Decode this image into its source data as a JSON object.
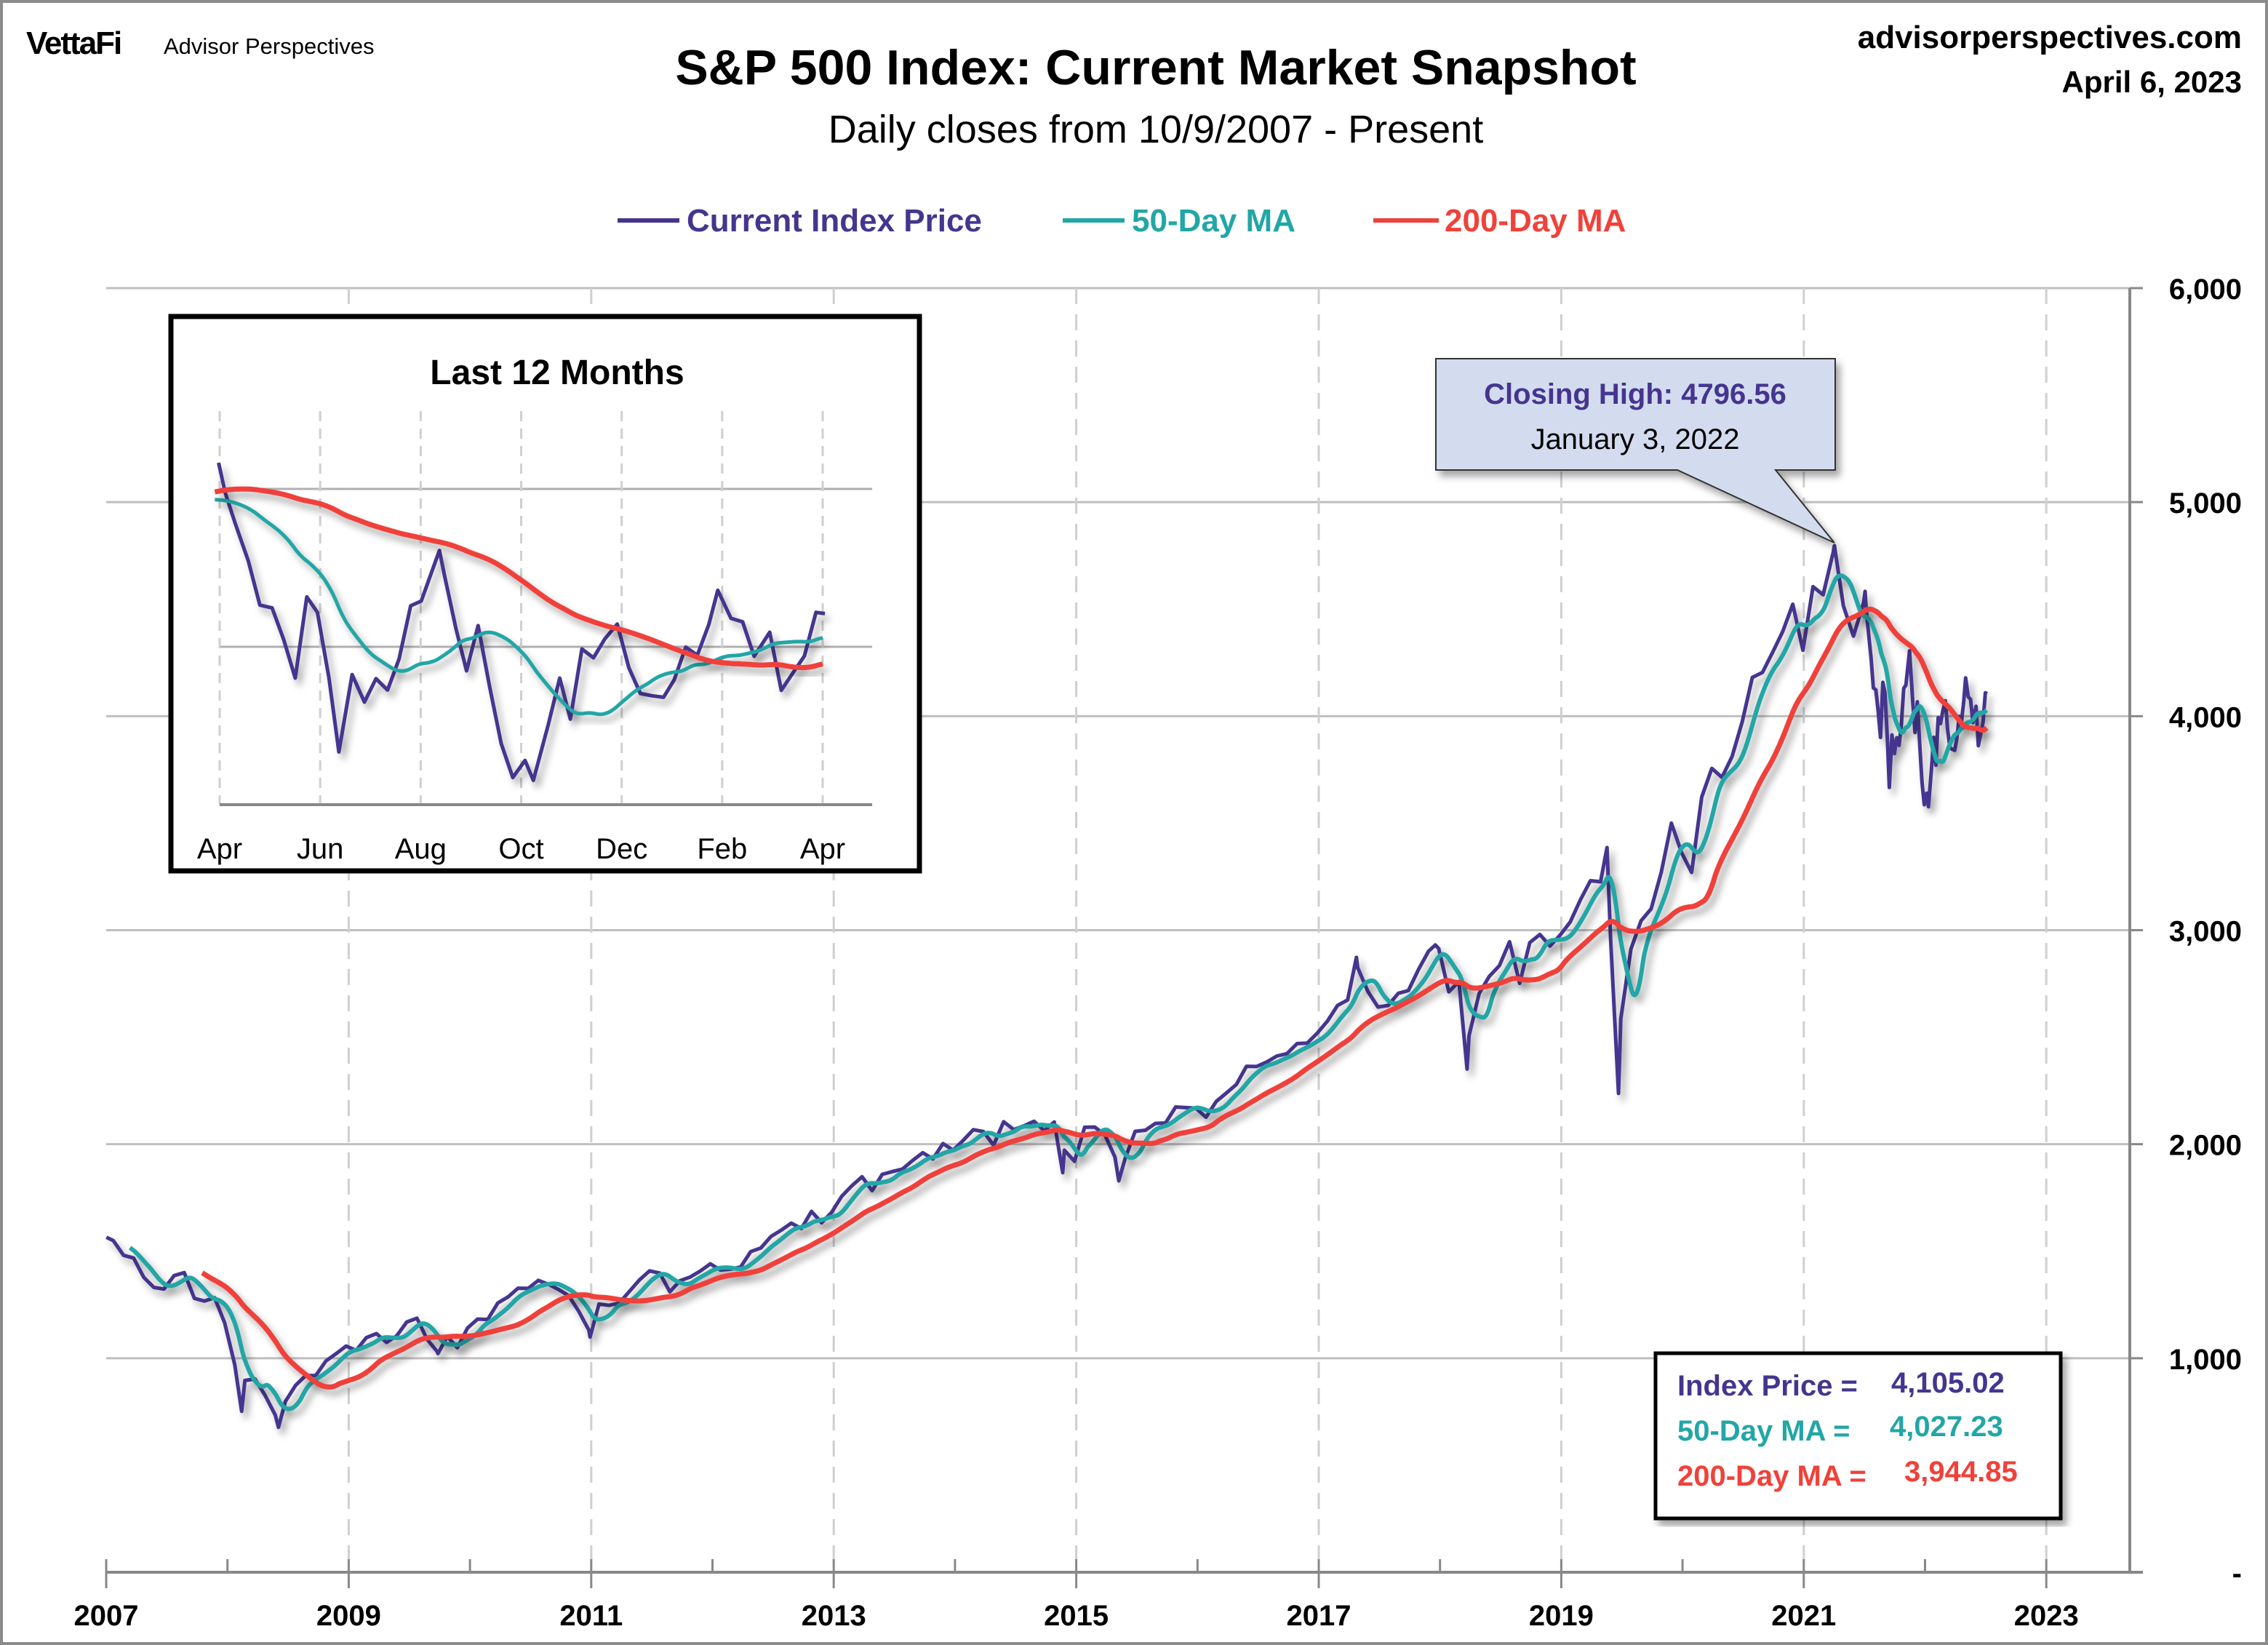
{
  "header": {
    "logo": "VettaFi",
    "brand": "Advisor Perspectives",
    "site": "advisorperspectives.com",
    "date": "April 6, 2023"
  },
  "colors": {
    "price": "#45358f",
    "ma50": "#22a6a6",
    "ma200": "#f0413a",
    "grid": "#bfbfbf",
    "callout_fill": "#d3dcef"
  },
  "chart_data": {
    "type": "line",
    "title": "S&P 500 Index: Current Market Snapshot",
    "subtitle": "Daily closes from 10/9/2007 - Present",
    "legend": [
      {
        "name": "Current Index Price",
        "color": "#45358f"
      },
      {
        "name": "50-Day MA",
        "color": "#22a6a6"
      },
      {
        "name": "200-Day MA",
        "color": "#f0413a"
      }
    ],
    "legend_placement": "top-center",
    "ylim": [
      0,
      6000
    ],
    "y_ticks": [
      "-",
      "1,000",
      "2,000",
      "3,000",
      "4,000",
      "5,000",
      "6,000"
    ],
    "y_axis_side": "right",
    "x_ticks": [
      "2007",
      "2009",
      "2011",
      "2013",
      "2015",
      "2017",
      "2019",
      "2021",
      "2023"
    ],
    "grid": true,
    "price": [
      [
        "2007-10-09",
        1565
      ],
      [
        "2007-10",
        1549
      ],
      [
        "2007-11",
        1481
      ],
      [
        "2007-12",
        1468
      ],
      [
        "2008-01",
        1378
      ],
      [
        "2008-02",
        1331
      ],
      [
        "2008-03",
        1323
      ],
      [
        "2008-04",
        1386
      ],
      [
        "2008-05",
        1400
      ],
      [
        "2008-06",
        1280
      ],
      [
        "2008-07",
        1267
      ],
      [
        "2008-08",
        1283
      ],
      [
        "2008-09",
        1165
      ],
      [
        "2008-10",
        969
      ],
      [
        "2008-11-20",
        752
      ],
      [
        "2008-11",
        896
      ],
      [
        "2008-12",
        903
      ],
      [
        "2009-01",
        826
      ],
      [
        "2009-02",
        735
      ],
      [
        "2009-03-09",
        677
      ],
      [
        "2009-03",
        798
      ],
      [
        "2009-04",
        873
      ],
      [
        "2009-05",
        919
      ],
      [
        "2009-06",
        919
      ],
      [
        "2009-07",
        987
      ],
      [
        "2009-08",
        1021
      ],
      [
        "2009-09",
        1057
      ],
      [
        "2009-10",
        1036
      ],
      [
        "2009-11",
        1096
      ],
      [
        "2009-12",
        1115
      ],
      [
        "2010-01",
        1074
      ],
      [
        "2010-02",
        1104
      ],
      [
        "2010-03",
        1169
      ],
      [
        "2010-04",
        1187
      ],
      [
        "2010-05",
        1089
      ],
      [
        "2010-06",
        1031
      ],
      [
        "2010-07-02",
        1022
      ],
      [
        "2010-07",
        1102
      ],
      [
        "2010-08",
        1049
      ],
      [
        "2010-09",
        1141
      ],
      [
        "2010-10",
        1183
      ],
      [
        "2010-11",
        1181
      ],
      [
        "2010-12",
        1258
      ],
      [
        "2011-01",
        1286
      ],
      [
        "2011-02",
        1327
      ],
      [
        "2011-03",
        1326
      ],
      [
        "2011-04",
        1364
      ],
      [
        "2011-05",
        1345
      ],
      [
        "2011-06",
        1321
      ],
      [
        "2011-07",
        1292
      ],
      [
        "2011-08",
        1219
      ],
      [
        "2011-09",
        1131
      ],
      [
        "2011-10-03",
        1099
      ],
      [
        "2011-10",
        1253
      ],
      [
        "2011-11",
        1247
      ],
      [
        "2011-12",
        1258
      ],
      [
        "2012-01",
        1312
      ],
      [
        "2012-02",
        1366
      ],
      [
        "2012-03",
        1408
      ],
      [
        "2012-04",
        1398
      ],
      [
        "2012-05",
        1310
      ],
      [
        "2012-06",
        1362
      ],
      [
        "2012-07",
        1379
      ],
      [
        "2012-08",
        1407
      ],
      [
        "2012-09",
        1441
      ],
      [
        "2012-10",
        1412
      ],
      [
        "2012-11",
        1416
      ],
      [
        "2012-12",
        1426
      ],
      [
        "2013-01",
        1498
      ],
      [
        "2013-02",
        1515
      ],
      [
        "2013-03",
        1569
      ],
      [
        "2013-04",
        1598
      ],
      [
        "2013-05",
        1631
      ],
      [
        "2013-06",
        1606
      ],
      [
        "2013-07",
        1686
      ],
      [
        "2013-08",
        1633
      ],
      [
        "2013-09",
        1682
      ],
      [
        "2013-10",
        1757
      ],
      [
        "2013-11",
        1806
      ],
      [
        "2013-12",
        1848
      ],
      [
        "2014-01",
        1783
      ],
      [
        "2014-02",
        1859
      ],
      [
        "2014-03",
        1872
      ],
      [
        "2014-04",
        1884
      ],
      [
        "2014-05",
        1924
      ],
      [
        "2014-06",
        1960
      ],
      [
        "2014-07",
        1931
      ],
      [
        "2014-08",
        2003
      ],
      [
        "2014-09",
        1972
      ],
      [
        "2014-10",
        2018
      ],
      [
        "2014-11",
        2068
      ],
      [
        "2014-12",
        2059
      ],
      [
        "2015-01",
        1995
      ],
      [
        "2015-02",
        2105
      ],
      [
        "2015-03",
        2068
      ],
      [
        "2015-04",
        2086
      ],
      [
        "2015-05",
        2107
      ],
      [
        "2015-06",
        2063
      ],
      [
        "2015-07",
        2104
      ],
      [
        "2015-08-25",
        1867
      ],
      [
        "2015-08",
        1972
      ],
      [
        "2015-09",
        1920
      ],
      [
        "2015-10",
        2079
      ],
      [
        "2015-11",
        2080
      ],
      [
        "2015-12",
        2044
      ],
      [
        "2016-01",
        1940
      ],
      [
        "2016-02-11",
        1829
      ],
      [
        "2016-02",
        1932
      ],
      [
        "2016-03",
        2060
      ],
      [
        "2016-04",
        2065
      ],
      [
        "2016-05",
        2097
      ],
      [
        "2016-06",
        2099
      ],
      [
        "2016-07",
        2174
      ],
      [
        "2016-08",
        2171
      ],
      [
        "2016-09",
        2168
      ],
      [
        "2016-10",
        2126
      ],
      [
        "2016-11",
        2199
      ],
      [
        "2016-12",
        2239
      ],
      [
        "2017-01",
        2279
      ],
      [
        "2017-02",
        2364
      ],
      [
        "2017-03",
        2363
      ],
      [
        "2017-04",
        2384
      ],
      [
        "2017-05",
        2412
      ],
      [
        "2017-06",
        2423
      ],
      [
        "2017-07",
        2470
      ],
      [
        "2017-08",
        2472
      ],
      [
        "2017-09",
        2519
      ],
      [
        "2017-10",
        2575
      ],
      [
        "2017-11",
        2648
      ],
      [
        "2017-12",
        2674
      ],
      [
        "2018-01-26",
        2873
      ],
      [
        "2018-01",
        2824
      ],
      [
        "2018-02",
        2714
      ],
      [
        "2018-03",
        2641
      ],
      [
        "2018-04",
        2648
      ],
      [
        "2018-05",
        2705
      ],
      [
        "2018-06",
        2718
      ],
      [
        "2018-07",
        2816
      ],
      [
        "2018-08",
        2902
      ],
      [
        "2018-09-20",
        2931
      ],
      [
        "2018-09",
        2914
      ],
      [
        "2018-10",
        2712
      ],
      [
        "2018-11",
        2760
      ],
      [
        "2018-12-24",
        2351
      ],
      [
        "2018-12",
        2507
      ],
      [
        "2019-01",
        2704
      ],
      [
        "2019-02",
        2784
      ],
      [
        "2019-03",
        2834
      ],
      [
        "2019-04",
        2946
      ],
      [
        "2019-05",
        2752
      ],
      [
        "2019-06",
        2942
      ],
      [
        "2019-07",
        2980
      ],
      [
        "2019-08",
        2926
      ],
      [
        "2019-09",
        2977
      ],
      [
        "2019-10",
        3038
      ],
      [
        "2019-11",
        3141
      ],
      [
        "2019-12",
        3231
      ],
      [
        "2020-01",
        3226
      ],
      [
        "2020-02-19",
        3386
      ],
      [
        "2020-02",
        2954
      ],
      [
        "2020-03-23",
        2237
      ],
      [
        "2020-03",
        2585
      ],
      [
        "2020-04",
        2912
      ],
      [
        "2020-05",
        3044
      ],
      [
        "2020-06",
        3100
      ],
      [
        "2020-07",
        3271
      ],
      [
        "2020-08",
        3500
      ],
      [
        "2020-09",
        3363
      ],
      [
        "2020-10",
        3270
      ],
      [
        "2020-11",
        3622
      ],
      [
        "2020-12",
        3756
      ],
      [
        "2021-01",
        3714
      ],
      [
        "2021-02",
        3811
      ],
      [
        "2021-03",
        3973
      ],
      [
        "2021-04",
        4181
      ],
      [
        "2021-05",
        4204
      ],
      [
        "2021-06",
        4298
      ],
      [
        "2021-07",
        4395
      ],
      [
        "2021-08",
        4523
      ],
      [
        "2021-09",
        4308
      ],
      [
        "2021-10",
        4605
      ],
      [
        "2021-11",
        4567
      ],
      [
        "2021-12",
        4766
      ],
      [
        "2022-01-03",
        4796.56
      ],
      [
        "2022-01",
        4516
      ],
      [
        "2022-02",
        4374
      ],
      [
        "2022-03",
        4530
      ]
    ],
    "annotation": {
      "title": "Closing High: 4796.56",
      "subtitle": "January 3, 2022",
      "date": "2022-01-03",
      "value": 4796.56
    },
    "summary": {
      "price_label": "Index Price =",
      "price_value": "4,105.02",
      "ma50_label": "50-Day MA =",
      "ma50_value": "4,027.23",
      "ma200_label": "200-Day MA =",
      "ma200_value": "3,944.85"
    },
    "inset": {
      "title": "Last 12 Months",
      "x_ticks": [
        "Apr",
        "Jun",
        "Aug",
        "Oct",
        "Dec",
        "Feb",
        "Apr"
      ],
      "gridlines": [
        4000,
        4500
      ],
      "ylim": [
        3500,
        4650
      ],
      "price": [
        [
          "2022-04-04",
          4583
        ],
        [
          "2022-04-08",
          4488
        ],
        [
          "2022-04-14",
          4392
        ],
        [
          "2022-04-22",
          4272
        ],
        [
          "2022-04-29",
          4132
        ],
        [
          "2022-05-06",
          4123
        ],
        [
          "2022-05-13",
          4023
        ],
        [
          "2022-05-20",
          3901
        ],
        [
          "2022-05-27",
          4158
        ],
        [
          "2022-06-03",
          4109
        ],
        [
          "2022-06-10",
          3901
        ],
        [
          "2022-06-16",
          3667
        ],
        [
          "2022-06-24",
          3912
        ],
        [
          "2022-07-01",
          3825
        ],
        [
          "2022-07-08",
          3899
        ],
        [
          "2022-07-15",
          3863
        ],
        [
          "2022-07-22",
          3962
        ],
        [
          "2022-07-29",
          4130
        ],
        [
          "2022-08-05",
          4145
        ],
        [
          "2022-08-16",
          4305
        ],
        [
          "2022-08-19",
          4228
        ],
        [
          "2022-08-26",
          4058
        ],
        [
          "2022-09-02",
          3924
        ],
        [
          "2022-09-09",
          4067
        ],
        [
          "2022-09-16",
          3873
        ],
        [
          "2022-09-23",
          3693
        ],
        [
          "2022-09-30",
          3586
        ],
        [
          "2022-10-07",
          3640
        ],
        [
          "2022-10-12",
          3577
        ],
        [
          "2022-10-21",
          3752
        ],
        [
          "2022-10-28",
          3901
        ],
        [
          "2022-11-04",
          3771
        ],
        [
          "2022-11-11",
          3993
        ],
        [
          "2022-11-18",
          3965
        ],
        [
          "2022-11-25",
          4026
        ],
        [
          "2022-12-02",
          4072
        ],
        [
          "2022-12-09",
          3934
        ],
        [
          "2022-12-16",
          3852
        ],
        [
          "2022-12-23",
          3845
        ],
        [
          "2022-12-30",
          3840
        ],
        [
          "2023-01-06",
          3895
        ],
        [
          "2023-01-13",
          3999
        ],
        [
          "2023-01-20",
          3973
        ],
        [
          "2023-01-27",
          4071
        ],
        [
          "2023-02-02",
          4179
        ],
        [
          "2023-02-10",
          4090
        ],
        [
          "2023-02-17",
          4079
        ],
        [
          "2023-02-24",
          3970
        ],
        [
          "2023-03-03",
          4046
        ],
        [
          "2023-03-10",
          3862
        ],
        [
          "2023-03-17",
          3917
        ],
        [
          "2023-03-24",
          3971
        ],
        [
          "2023-03-31",
          4109
        ],
        [
          "2023-04-06",
          4105.02
        ]
      ]
    }
  }
}
